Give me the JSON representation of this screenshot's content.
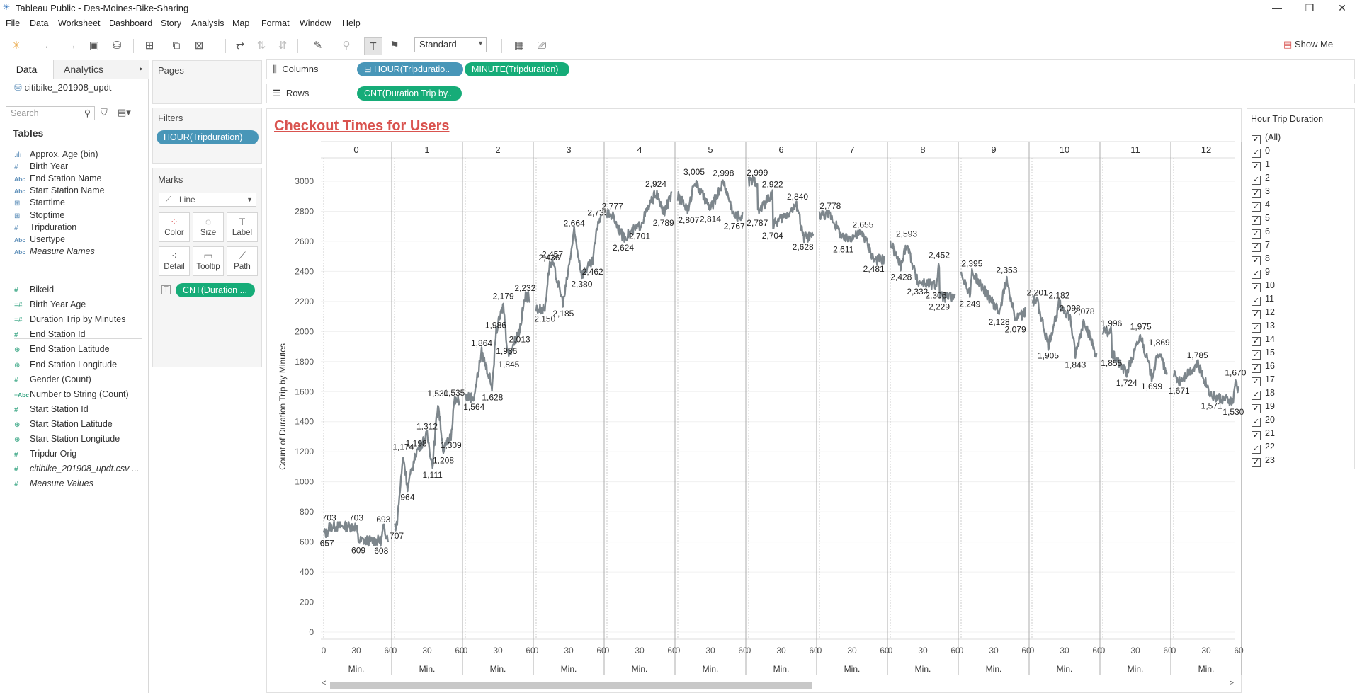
{
  "window": {
    "title": "Tableau Public - Des-Moines-Bike-Sharing"
  },
  "menu": [
    "File",
    "Data",
    "Worksheet",
    "Dashboard",
    "Story",
    "Analysis",
    "Map",
    "Format",
    "Window",
    "Help"
  ],
  "toolbar": {
    "fit": "Standard",
    "show_me": "Show Me"
  },
  "data_pane": {
    "tab_data": "Data",
    "tab_analytics": "Analytics",
    "datasource": "citibike_201908_updt",
    "search_placeholder": "Search",
    "tables_heading": "Tables",
    "dimensions": [
      {
        "icon": "bin-icon",
        "glyph": ".ılı",
        "label": "Approx. Age (bin)"
      },
      {
        "icon": "number-icon",
        "glyph": "#",
        "label": "Birth Year"
      },
      {
        "icon": "string-icon",
        "glyph": "Abc",
        "label": "End Station Name"
      },
      {
        "icon": "string-icon",
        "glyph": "Abc",
        "label": "Start Station Name"
      },
      {
        "icon": "datetime-icon",
        "glyph": "⊞",
        "label": "Starttime"
      },
      {
        "icon": "datetime-icon",
        "glyph": "⊞",
        "label": "Stoptime"
      },
      {
        "icon": "number-icon",
        "glyph": "#",
        "label": "Tripduration"
      },
      {
        "icon": "string-icon",
        "glyph": "Abc",
        "label": "Usertype"
      },
      {
        "icon": "string-icon",
        "glyph": "Abc",
        "label": "Measure Names"
      }
    ],
    "measures": [
      {
        "icon": "number-icon",
        "glyph": "#",
        "label": "Bikeid"
      },
      {
        "icon": "calc-number-icon",
        "glyph": "=#",
        "label": "Birth Year Age"
      },
      {
        "icon": "calc-number-icon",
        "glyph": "=#",
        "label": "Duration Trip by Minutes"
      },
      {
        "icon": "number-icon",
        "glyph": "#",
        "label": "End Station Id"
      },
      {
        "icon": "globe-icon",
        "glyph": "⊕",
        "label": "End Station Latitude"
      },
      {
        "icon": "globe-icon",
        "glyph": "⊕",
        "label": "End Station Longitude"
      },
      {
        "icon": "number-icon",
        "glyph": "#",
        "label": "Gender (Count)"
      },
      {
        "icon": "calc-string-icon",
        "glyph": "=Abc",
        "label": "Number to String (Count)"
      },
      {
        "icon": "number-icon",
        "glyph": "#",
        "label": "Start Station Id"
      },
      {
        "icon": "globe-icon",
        "glyph": "⊕",
        "label": "Start Station Latitude"
      },
      {
        "icon": "globe-icon",
        "glyph": "⊕",
        "label": "Start Station Longitude"
      },
      {
        "icon": "number-icon",
        "glyph": "#",
        "label": "Tripdur Orig"
      },
      {
        "icon": "number-icon",
        "glyph": "#",
        "label": "citibike_201908_updt.csv ..."
      },
      {
        "icon": "number-icon",
        "glyph": "#",
        "label": "Measure Values"
      }
    ]
  },
  "cards": {
    "pages": "Pages",
    "filters": "Filters",
    "filter_pill": "HOUR(Tripduration)",
    "marks": "Marks",
    "mark_type": "Line",
    "mark_buttons": [
      "Color",
      "Size",
      "Label",
      "Detail",
      "Tooltip",
      "Path"
    ],
    "label_pill": "CNT(Duration ..."
  },
  "shelves": {
    "columns_label": "Columns",
    "rows_label": "Rows",
    "columns_pills": [
      "HOUR(Tripduratio..",
      "MINUTE(Tripduration)"
    ],
    "rows_pill": "CNT(Duration Trip by.."
  },
  "view": {
    "title": "Checkout Times for Users"
  },
  "legend": {
    "title": "Hour Trip Duration",
    "items": [
      "(All)",
      "0",
      "1",
      "2",
      "3",
      "4",
      "5",
      "6",
      "7",
      "8",
      "9",
      "10",
      "11",
      "12",
      "13",
      "14",
      "15",
      "16",
      "17",
      "18",
      "19",
      "20",
      "21",
      "22",
      "23"
    ]
  },
  "chart_data": {
    "type": "line",
    "title": "Checkout Times for Users",
    "ylabel": "Count of Duration Trip by Minutes",
    "xlabel": "Min.",
    "ylim": [
      0,
      3000
    ],
    "y_ticks": [
      0,
      200,
      400,
      600,
      800,
      1000,
      1200,
      1400,
      1600,
      1800,
      2000,
      2200,
      2400,
      2600,
      2800,
      3000
    ],
    "x_ticks": [
      0,
      30,
      60
    ],
    "hours": [
      "0",
      "1",
      "2",
      "3",
      "4",
      "5",
      "6",
      "7",
      "8",
      "9",
      "10",
      "11",
      "12"
    ],
    "series_color": "#7d868c",
    "panels": [
      {
        "hour": "0",
        "start": 660,
        "end": 630,
        "labels": [
          {
            "v": 703,
            "m": 5,
            "pos": "above"
          },
          {
            "v": 703,
            "m": 30,
            "pos": "above"
          },
          {
            "v": 693,
            "m": 55,
            "pos": "above"
          },
          {
            "v": 657,
            "m": 3,
            "pos": "below"
          },
          {
            "v": 609,
            "m": 32,
            "pos": "below"
          },
          {
            "v": 608,
            "m": 53,
            "pos": "below"
          }
        ]
      },
      {
        "hour": "1",
        "start": 707,
        "end": 1535,
        "labels": [
          {
            "v": 707,
            "m": 2,
            "pos": "below"
          },
          {
            "v": 964,
            "m": 12,
            "pos": "below"
          },
          {
            "v": 1174,
            "m": 8,
            "pos": "above"
          },
          {
            "v": 1198,
            "m": 20,
            "pos": "above"
          },
          {
            "v": 1111,
            "m": 35,
            "pos": "below"
          },
          {
            "v": 1312,
            "m": 30,
            "pos": "above"
          },
          {
            "v": 1208,
            "m": 45,
            "pos": "below"
          },
          {
            "v": 1309,
            "m": 52,
            "pos": "below"
          },
          {
            "v": 1530,
            "m": 40,
            "pos": "above"
          },
          {
            "v": 1535,
            "m": 55,
            "pos": "above"
          }
        ]
      },
      {
        "hour": "2",
        "start": 1564,
        "end": 2232,
        "labels": [
          {
            "v": 1564,
            "m": 8,
            "pos": "below"
          },
          {
            "v": 1628,
            "m": 25,
            "pos": "below"
          },
          {
            "v": 1864,
            "m": 15,
            "pos": "above"
          },
          {
            "v": 1986,
            "m": 28,
            "pos": "above"
          },
          {
            "v": 1936,
            "m": 38,
            "pos": "below"
          },
          {
            "v": 1845,
            "m": 40,
            "pos": "below"
          },
          {
            "v": 2179,
            "m": 35,
            "pos": "above"
          },
          {
            "v": 2013,
            "m": 50,
            "pos": "below"
          },
          {
            "v": 2232,
            "m": 55,
            "pos": "above"
          }
        ]
      },
      {
        "hour": "3",
        "start": 2150,
        "end": 2735,
        "labels": [
          {
            "v": 2150,
            "m": 8,
            "pos": "below"
          },
          {
            "v": 2457,
            "m": 15,
            "pos": "above"
          },
          {
            "v": 2436,
            "m": 12,
            "pos": "above"
          },
          {
            "v": 2185,
            "m": 25,
            "pos": "below"
          },
          {
            "v": 2664,
            "m": 35,
            "pos": "above"
          },
          {
            "v": 2380,
            "m": 42,
            "pos": "below"
          },
          {
            "v": 2462,
            "m": 52,
            "pos": "below"
          },
          {
            "v": 2735,
            "m": 57,
            "pos": "above"
          }
        ]
      },
      {
        "hour": "4",
        "start": 2777,
        "end": 2900,
        "labels": [
          {
            "v": 2777,
            "m": 5,
            "pos": "above"
          },
          {
            "v": 2624,
            "m": 15,
            "pos": "below"
          },
          {
            "v": 2701,
            "m": 30,
            "pos": "below"
          },
          {
            "v": 2924,
            "m": 45,
            "pos": "above"
          },
          {
            "v": 2789,
            "m": 52,
            "pos": "below"
          }
        ]
      },
      {
        "hour": "5",
        "start": 2900,
        "end": 2767,
        "labels": [
          {
            "v": 3005,
            "m": 15,
            "pos": "above"
          },
          {
            "v": 2807,
            "m": 10,
            "pos": "below"
          },
          {
            "v": 2814,
            "m": 30,
            "pos": "below"
          },
          {
            "v": 2998,
            "m": 42,
            "pos": "above"
          },
          {
            "v": 2767,
            "m": 52,
            "pos": "below"
          }
        ]
      },
      {
        "hour": "6",
        "start": 2999,
        "end": 2628,
        "labels": [
          {
            "v": 2999,
            "m": 8,
            "pos": "above"
          },
          {
            "v": 2922,
            "m": 22,
            "pos": "above"
          },
          {
            "v": 2787,
            "m": 8,
            "pos": "below"
          },
          {
            "v": 2704,
            "m": 22,
            "pos": "below"
          },
          {
            "v": 2840,
            "m": 45,
            "pos": "above"
          },
          {
            "v": 2628,
            "m": 50,
            "pos": "below"
          }
        ]
      },
      {
        "hour": "7",
        "start": 2778,
        "end": 2481,
        "labels": [
          {
            "v": 2778,
            "m": 10,
            "pos": "above"
          },
          {
            "v": 2611,
            "m": 22,
            "pos": "below"
          },
          {
            "v": 2655,
            "m": 40,
            "pos": "above"
          },
          {
            "v": 2481,
            "m": 50,
            "pos": "below"
          }
        ]
      },
      {
        "hour": "8",
        "start": 2593,
        "end": 2229,
        "labels": [
          {
            "v": 2593,
            "m": 15,
            "pos": "above"
          },
          {
            "v": 2428,
            "m": 10,
            "pos": "below"
          },
          {
            "v": 2332,
            "m": 25,
            "pos": "below"
          },
          {
            "v": 2452,
            "m": 45,
            "pos": "above"
          },
          {
            "v": 2306,
            "m": 42,
            "pos": "below"
          },
          {
            "v": 2229,
            "m": 45,
            "pos": "below"
          }
        ]
      },
      {
        "hour": "9",
        "start": 2395,
        "end": 2130,
        "labels": [
          {
            "v": 2395,
            "m": 10,
            "pos": "above"
          },
          {
            "v": 2249,
            "m": 8,
            "pos": "below"
          },
          {
            "v": 2353,
            "m": 42,
            "pos": "above"
          },
          {
            "v": 2128,
            "m": 35,
            "pos": "below"
          },
          {
            "v": 2079,
            "m": 50,
            "pos": "below"
          }
        ]
      },
      {
        "hour": "10",
        "start": 2201,
        "end": 1843,
        "labels": [
          {
            "v": 2201,
            "m": 5,
            "pos": "above"
          },
          {
            "v": 2182,
            "m": 25,
            "pos": "above"
          },
          {
            "v": 1905,
            "m": 15,
            "pos": "below"
          },
          {
            "v": 2098,
            "m": 35,
            "pos": "above"
          },
          {
            "v": 2078,
            "m": 48,
            "pos": "above"
          },
          {
            "v": 1843,
            "m": 40,
            "pos": "below"
          }
        ]
      },
      {
        "hour": "11",
        "start": 1996,
        "end": 1699,
        "labels": [
          {
            "v": 1996,
            "m": 8,
            "pos": "above"
          },
          {
            "v": 1855,
            "m": 8,
            "pos": "below"
          },
          {
            "v": 1724,
            "m": 22,
            "pos": "below"
          },
          {
            "v": 1975,
            "m": 35,
            "pos": "above"
          },
          {
            "v": 1869,
            "m": 52,
            "pos": "above"
          },
          {
            "v": 1699,
            "m": 45,
            "pos": "below"
          }
        ]
      },
      {
        "hour": "12",
        "start": 1720,
        "end": 1620,
        "labels": [
          {
            "v": 1671,
            "m": 5,
            "pos": "below"
          },
          {
            "v": 1785,
            "m": 22,
            "pos": "above"
          },
          {
            "v": 1571,
            "m": 35,
            "pos": "below"
          },
          {
            "v": 1670,
            "m": 57,
            "pos": "above"
          },
          {
            "v": 1530,
            "m": 55,
            "pos": "below"
          }
        ]
      }
    ]
  }
}
